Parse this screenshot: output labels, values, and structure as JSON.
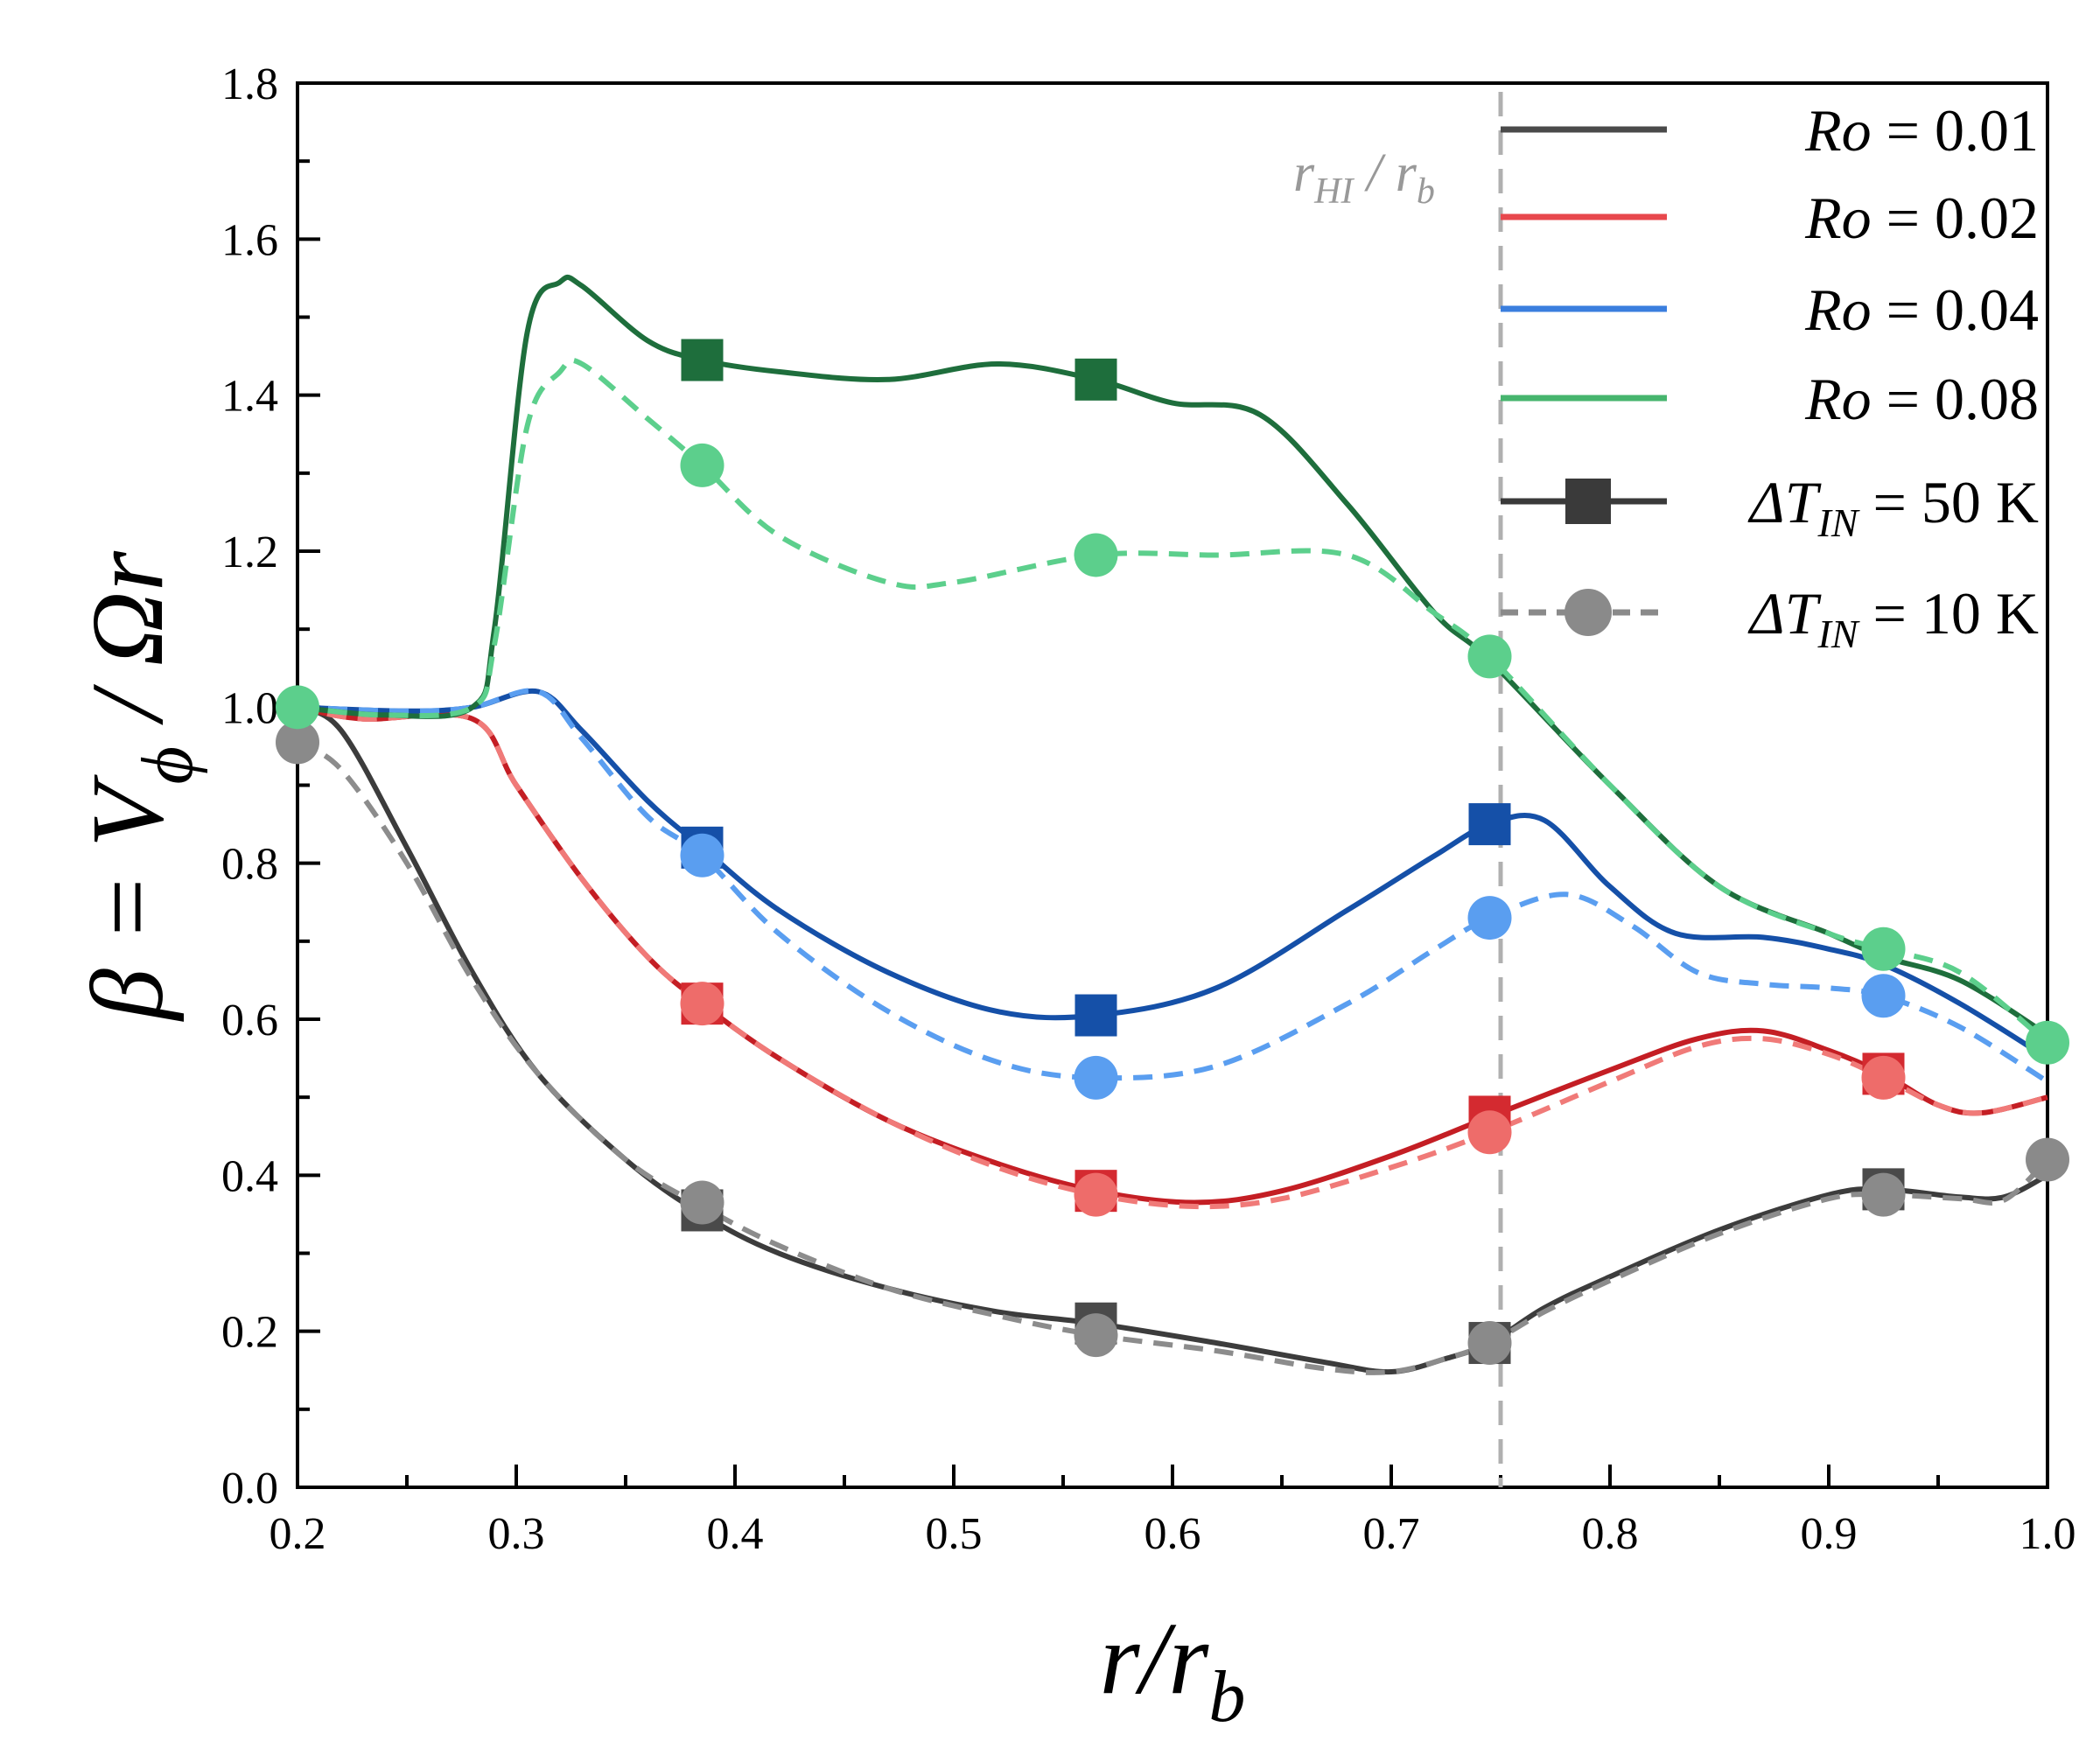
{
  "chart_data": {
    "type": "line",
    "xlabel": {
      "main": "r/r",
      "sub": "b"
    },
    "ylabel": {
      "main": "β = V",
      "sub": "ϕ",
      "tail": " / Ωr"
    },
    "xlim": [
      0.2,
      1.0
    ],
    "ylim": [
      0.0,
      1.8
    ],
    "xticks": [
      "0.2",
      "0.3",
      "0.4",
      "0.5",
      "0.6",
      "0.7",
      "0.8",
      "0.9",
      "1.0"
    ],
    "yticks": [
      "0.0",
      "0.2",
      "0.4",
      "0.6",
      "0.8",
      "1.0",
      "1.2",
      "1.4",
      "1.6",
      "1.8"
    ],
    "reference_line": {
      "x": 0.75,
      "label_main": "r",
      "label_sub1": "HI",
      "label_mid": " / r",
      "label_sub2": "b"
    },
    "legend": {
      "position": "top-right",
      "ro_label": "Ro",
      "ro_entries": [
        {
          "value": " = 0.01",
          "color": "#4a4a4a"
        },
        {
          "value": " = 0.02",
          "color": "#e8484d"
        },
        {
          "value": " = 0.04",
          "color": "#3a7ede"
        },
        {
          "value": " = 0.08",
          "color": "#46b56e"
        }
      ],
      "dt_prefix": "ΔT",
      "dt_sub": "IN",
      "dt_entries": [
        {
          "value": " = 50 K",
          "style": "solid",
          "marker": "square",
          "color": "#3a3a3a"
        },
        {
          "value": " = 10 K",
          "style": "dashed",
          "marker": "circle",
          "color": "#8a8a8a"
        }
      ]
    },
    "series": [
      {
        "name": "Ro = 0.01, ΔT_IN = 50 K",
        "style": "solid",
        "marker": "square",
        "color": "#3c3c3c",
        "marker_color": "#4a4a4a",
        "x": [
          0.2,
          0.22,
          0.25,
          0.28,
          0.31,
          0.35,
          0.385,
          0.42,
          0.47,
          0.52,
          0.565,
          0.62,
          0.67,
          0.7,
          0.725,
          0.745,
          0.77,
          0.8,
          0.85,
          0.9,
          0.925,
          0.96,
          0.98,
          1.0
        ],
        "y": [
          1.0,
          0.97,
          0.82,
          0.66,
          0.53,
          0.42,
          0.35,
          0.3,
          0.255,
          0.225,
          0.21,
          0.185,
          0.16,
          0.148,
          0.165,
          0.185,
          0.23,
          0.27,
          0.33,
          0.375,
          0.382,
          0.372,
          0.372,
          0.4
        ],
        "marker_x": [
          0.385,
          0.565,
          0.745,
          0.925
        ],
        "marker_y": [
          0.355,
          0.21,
          0.185,
          0.382
        ]
      },
      {
        "name": "Ro = 0.01, ΔT_IN = 10 K",
        "style": "dashed",
        "marker": "circle",
        "color": "#8c8c8c",
        "marker_color": "#8a8a8a",
        "x": [
          0.2,
          0.22,
          0.25,
          0.28,
          0.31,
          0.35,
          0.385,
          0.42,
          0.47,
          0.52,
          0.565,
          0.62,
          0.67,
          0.7,
          0.725,
          0.745,
          0.77,
          0.8,
          0.85,
          0.9,
          0.925,
          0.96,
          0.98,
          1.0
        ],
        "y": [
          0.955,
          0.92,
          0.8,
          0.65,
          0.53,
          0.42,
          0.36,
          0.31,
          0.255,
          0.22,
          0.195,
          0.175,
          0.152,
          0.148,
          0.165,
          0.185,
          0.225,
          0.265,
          0.325,
          0.37,
          0.375,
          0.37,
          0.368,
          0.42
        ],
        "marker_x": [
          0.2,
          0.385,
          0.565,
          0.745,
          0.925,
          1.0
        ],
        "marker_y": [
          0.955,
          0.365,
          0.195,
          0.185,
          0.375,
          0.42
        ]
      },
      {
        "name": "Ro = 0.02, ΔT_IN = 50 K",
        "style": "solid",
        "marker": "square",
        "color": "#c41e24",
        "marker_color": "#d42a30",
        "x": [
          0.2,
          0.23,
          0.28,
          0.3,
          0.33,
          0.36,
          0.385,
          0.42,
          0.47,
          0.52,
          0.565,
          0.61,
          0.65,
          0.7,
          0.745,
          0.8,
          0.84,
          0.87,
          0.9,
          0.925,
          0.95,
          0.97,
          1.0
        ],
        "y": [
          1.0,
          0.985,
          0.985,
          0.9,
          0.78,
          0.68,
          0.62,
          0.55,
          0.47,
          0.415,
          0.38,
          0.365,
          0.38,
          0.425,
          0.475,
          0.535,
          0.575,
          0.585,
          0.56,
          0.53,
          0.49,
          0.48,
          0.5
        ],
        "marker_x": [
          0.385,
          0.565,
          0.745,
          0.925
        ],
        "marker_y": [
          0.62,
          0.38,
          0.475,
          0.53
        ]
      },
      {
        "name": "Ro = 0.02, ΔT_IN = 10 K",
        "style": "dashed",
        "marker": "circle",
        "color": "#f07a78",
        "marker_color": "#ee6c6a",
        "x": [
          0.2,
          0.23,
          0.28,
          0.3,
          0.33,
          0.36,
          0.385,
          0.42,
          0.47,
          0.52,
          0.565,
          0.61,
          0.65,
          0.7,
          0.745,
          0.8,
          0.84,
          0.87,
          0.9,
          0.925,
          0.95,
          0.97,
          1.0
        ],
        "y": [
          1.0,
          0.985,
          0.985,
          0.9,
          0.78,
          0.68,
          0.62,
          0.55,
          0.47,
          0.41,
          0.375,
          0.36,
          0.37,
          0.41,
          0.455,
          0.52,
          0.565,
          0.575,
          0.555,
          0.525,
          0.49,
          0.48,
          0.5
        ],
        "marker_x": [
          0.385,
          0.565,
          0.745,
          0.925
        ],
        "marker_y": [
          0.62,
          0.375,
          0.455,
          0.525
        ]
      },
      {
        "name": "Ro = 0.04, ΔT_IN = 50 K",
        "style": "solid",
        "marker": "square",
        "color": "#1550a8",
        "marker_color": "#1550a8",
        "x": [
          0.2,
          0.25,
          0.28,
          0.31,
          0.33,
          0.36,
          0.385,
          0.42,
          0.47,
          0.52,
          0.565,
          0.62,
          0.68,
          0.72,
          0.745,
          0.77,
          0.8,
          0.83,
          0.87,
          0.9,
          0.925,
          0.96,
          1.0
        ],
        "y": [
          1.0,
          0.995,
          1.0,
          1.02,
          0.97,
          0.88,
          0.82,
          0.74,
          0.66,
          0.61,
          0.605,
          0.64,
          0.74,
          0.81,
          0.85,
          0.855,
          0.77,
          0.71,
          0.705,
          0.69,
          0.67,
          0.62,
          0.55
        ],
        "marker_x": [
          0.385,
          0.565,
          0.745
        ],
        "marker_y": [
          0.82,
          0.605,
          0.85
        ]
      },
      {
        "name": "Ro = 0.04, ΔT_IN = 10 K",
        "style": "dashed",
        "marker": "circle",
        "color": "#5a9ef0",
        "marker_color": "#5a9ef0",
        "x": [
          0.2,
          0.25,
          0.28,
          0.31,
          0.33,
          0.36,
          0.385,
          0.42,
          0.47,
          0.52,
          0.565,
          0.62,
          0.68,
          0.72,
          0.745,
          0.78,
          0.81,
          0.84,
          0.87,
          0.9,
          0.925,
          0.96,
          1.0
        ],
        "y": [
          1.0,
          0.995,
          1.0,
          1.02,
          0.96,
          0.86,
          0.81,
          0.71,
          0.61,
          0.545,
          0.525,
          0.54,
          0.62,
          0.69,
          0.73,
          0.76,
          0.72,
          0.66,
          0.645,
          0.64,
          0.63,
          0.59,
          0.52
        ],
        "marker_x": [
          0.385,
          0.565,
          0.745,
          0.925
        ],
        "marker_y": [
          0.81,
          0.525,
          0.73,
          0.63
        ]
      },
      {
        "name": "Ro = 0.08, ΔT_IN = 50 K",
        "style": "solid",
        "marker": "square",
        "color": "#1e6e3c",
        "marker_color": "#1e6e3c",
        "x": [
          0.2,
          0.24,
          0.28,
          0.29,
          0.305,
          0.32,
          0.33,
          0.36,
          0.385,
          0.42,
          0.47,
          0.52,
          0.565,
          0.6,
          0.64,
          0.68,
          0.72,
          0.745,
          0.8,
          0.85,
          0.9,
          0.925,
          0.96,
          1.0
        ],
        "y": [
          1.0,
          0.99,
          1.0,
          1.1,
          1.48,
          1.545,
          1.54,
          1.47,
          1.445,
          1.43,
          1.42,
          1.44,
          1.42,
          1.39,
          1.375,
          1.26,
          1.12,
          1.06,
          0.9,
          0.77,
          0.71,
          0.68,
          0.65,
          0.58
        ],
        "marker_x": [
          0.385,
          0.565
        ],
        "marker_y": [
          1.445,
          1.42
        ]
      },
      {
        "name": "Ro = 0.08, ΔT_IN = 10 K",
        "style": "dashed",
        "marker": "circle",
        "color": "#5ccf8c",
        "marker_color": "#5ccf8c",
        "x": [
          0.2,
          0.24,
          0.28,
          0.29,
          0.305,
          0.32,
          0.33,
          0.36,
          0.385,
          0.42,
          0.47,
          0.5,
          0.565,
          0.62,
          0.68,
          0.72,
          0.745,
          0.8,
          0.85,
          0.9,
          0.925,
          0.96,
          1.0
        ],
        "y": [
          1.0,
          0.99,
          1.0,
          1.08,
          1.36,
          1.43,
          1.44,
          1.37,
          1.31,
          1.22,
          1.16,
          1.16,
          1.195,
          1.195,
          1.195,
          1.12,
          1.065,
          0.9,
          0.77,
          0.71,
          0.69,
          0.66,
          0.57
        ],
        "marker_x": [
          0.2,
          0.385,
          0.565,
          0.745,
          0.925,
          1.0
        ],
        "marker_y": [
          1.0,
          1.31,
          1.195,
          1.065,
          0.69,
          0.57
        ]
      }
    ]
  }
}
